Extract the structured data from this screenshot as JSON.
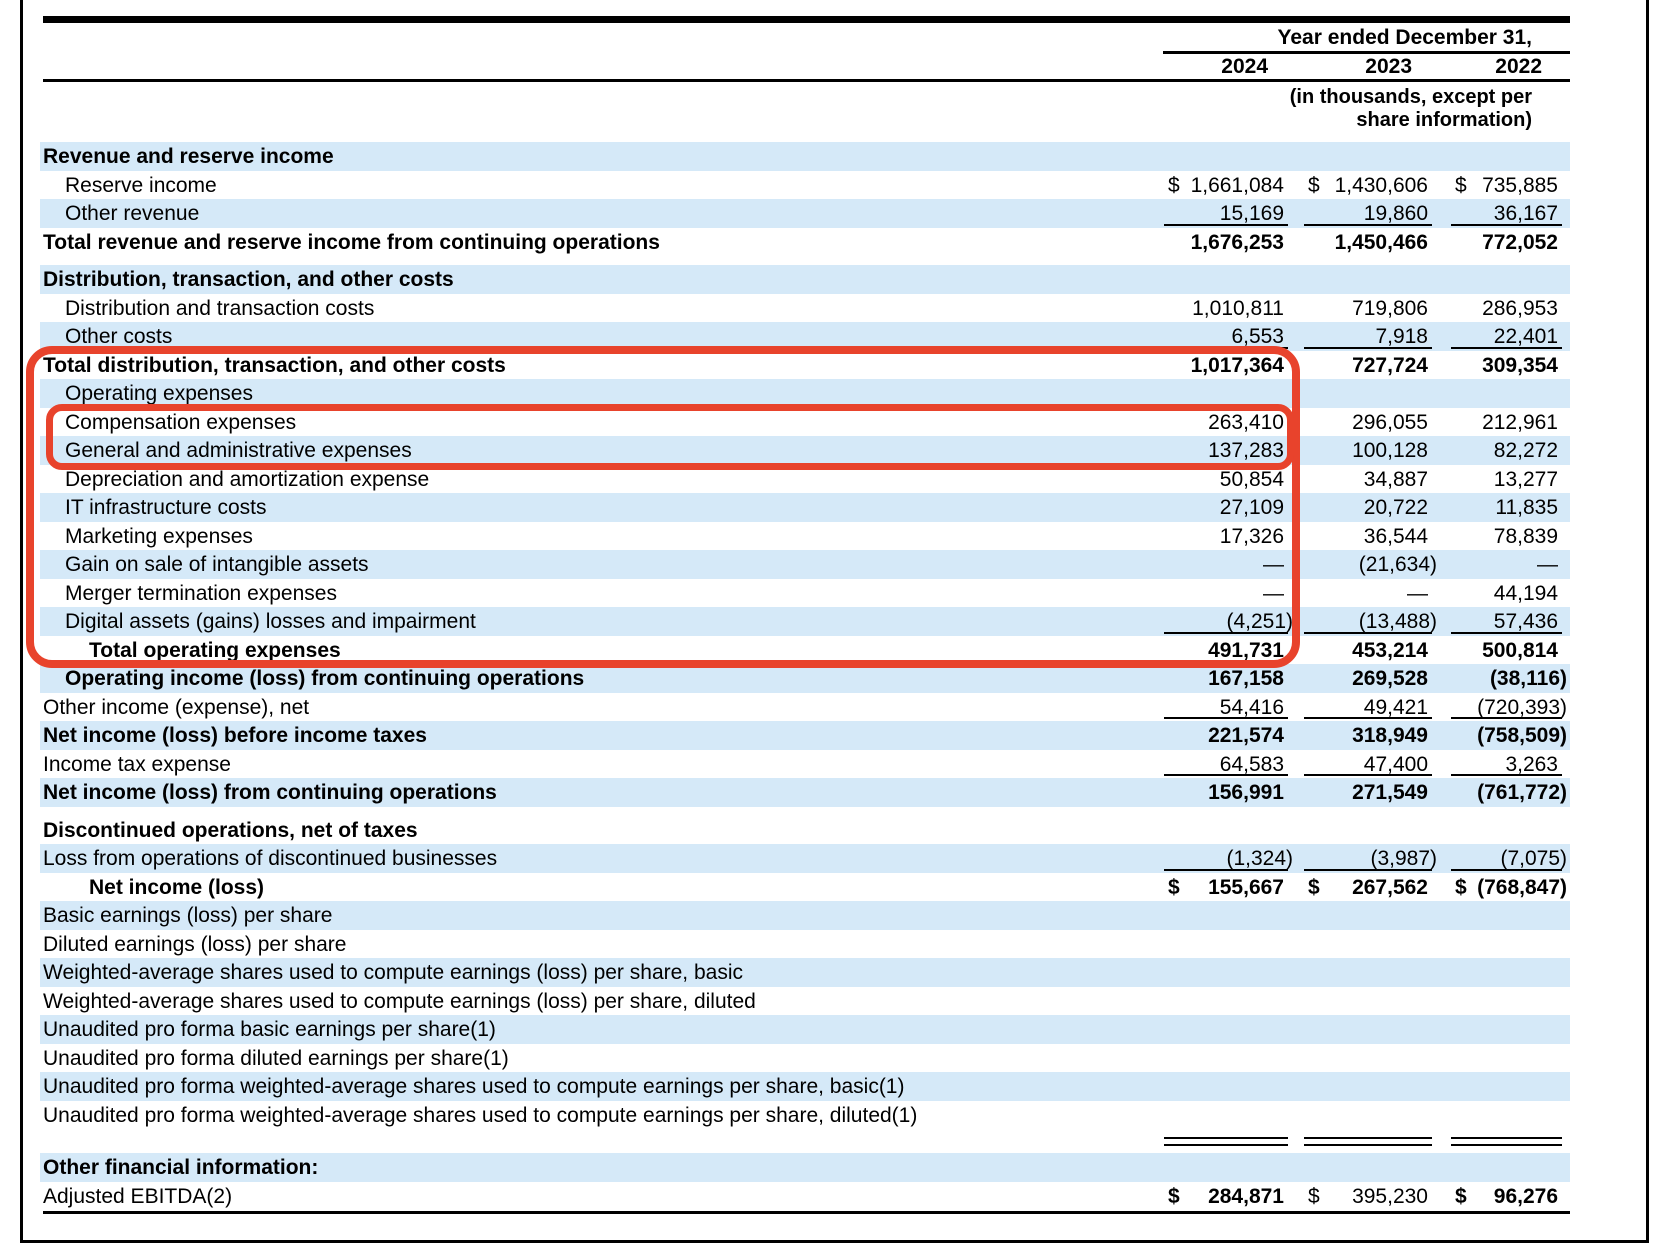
{
  "header": {
    "period_label": "Year ended December 31,",
    "years": [
      "2024",
      "2023",
      "2022"
    ],
    "units_note_line1": "(in thousands, except per",
    "units_note_line2": "share information)"
  },
  "colors": {
    "stripe": "#d5e9f8",
    "annotation_red": "#e8432c",
    "text": "#000000"
  },
  "annotations": {
    "outer_box_note": "red rounded box around rows from Total distribution, transaction, and other costs through Total operating expenses (2024 column)",
    "inner_box_note": "red rounded box around Compensation expenses and General and administrative expenses rows (2024 column)"
  },
  "table": {
    "rows": [
      {
        "label": "Revenue and reserve income",
        "indent": 0,
        "bold": true,
        "shaded": true,
        "values": [
          "",
          "",
          ""
        ]
      },
      {
        "label": "Reserve income",
        "indent": 1,
        "dollar": true,
        "values": [
          "1,661,084",
          "1,430,606",
          "735,885"
        ]
      },
      {
        "label": "Other revenue",
        "indent": 1,
        "shaded": true,
        "rule": true,
        "values": [
          "15,169",
          "19,860",
          "36,167"
        ]
      },
      {
        "label": "Total revenue and reserve income from continuing operations",
        "indent": 0,
        "bold": true,
        "vbold": true,
        "values": [
          "1,676,253",
          "1,450,466",
          "772,052"
        ]
      },
      {
        "type": "spacer",
        "h": 9
      },
      {
        "label": "Distribution, transaction, and other costs",
        "indent": 0,
        "bold": true,
        "shaded": true,
        "values": [
          "",
          "",
          ""
        ]
      },
      {
        "label": "Distribution and transaction costs",
        "indent": 1,
        "values": [
          "1,010,811",
          "719,806",
          "286,953"
        ]
      },
      {
        "label": "Other costs",
        "indent": 1,
        "shaded": true,
        "rule": true,
        "values": [
          "6,553",
          "7,918",
          "22,401"
        ]
      },
      {
        "label": "Total distribution, transaction, and other costs",
        "indent": 0,
        "bold": true,
        "vbold": true,
        "values": [
          "1,017,364",
          "727,724",
          "309,354"
        ]
      },
      {
        "label": "Operating expenses",
        "indent": 1,
        "shaded": true,
        "values": [
          "",
          "",
          ""
        ]
      },
      {
        "label": "Compensation expenses",
        "indent": 1,
        "values": [
          "263,410",
          "296,055",
          "212,961"
        ]
      },
      {
        "label": "General and administrative expenses",
        "indent": 1,
        "shaded": true,
        "values": [
          "137,283",
          "100,128",
          "82,272"
        ]
      },
      {
        "label": "Depreciation and amortization expense",
        "indent": 1,
        "values": [
          "50,854",
          "34,887",
          "13,277"
        ]
      },
      {
        "label": "IT infrastructure costs",
        "indent": 1,
        "shaded": true,
        "values": [
          "27,109",
          "20,722",
          "11,835"
        ]
      },
      {
        "label": "Marketing expenses",
        "indent": 1,
        "values": [
          "17,326",
          "36,544",
          "78,839"
        ]
      },
      {
        "label": "Gain on sale of intangible assets",
        "indent": 1,
        "shaded": true,
        "values": [
          "—",
          "(21,634)",
          "—"
        ]
      },
      {
        "label": "Merger termination expenses",
        "indent": 1,
        "values": [
          "—",
          "—",
          "44,194"
        ]
      },
      {
        "label": "Digital assets (gains) losses and impairment",
        "indent": 1,
        "shaded": true,
        "rule": true,
        "values": [
          "(4,251)",
          "(13,488)",
          "57,436"
        ]
      },
      {
        "label": "Total operating expenses",
        "indent": 2,
        "bold": true,
        "vbold": true,
        "values": [
          "491,731",
          "453,214",
          "500,814"
        ]
      },
      {
        "label": "Operating income (loss) from continuing operations",
        "indent": 1,
        "bold": true,
        "vbold": true,
        "shaded": true,
        "values": [
          "167,158",
          "269,528",
          "(38,116)"
        ]
      },
      {
        "label": "Other income (expense), net",
        "indent": 0,
        "rule": true,
        "values": [
          "54,416",
          "49,421",
          "(720,393)"
        ]
      },
      {
        "label": "Net income (loss) before income taxes",
        "indent": 0,
        "bold": true,
        "vbold": true,
        "shaded": true,
        "values": [
          "221,574",
          "318,949",
          "(758,509)"
        ]
      },
      {
        "label": "Income tax expense",
        "indent": 0,
        "rule": true,
        "values": [
          "64,583",
          "47,400",
          "3,263"
        ]
      },
      {
        "label": "Net income (loss) from continuing operations",
        "indent": 0,
        "bold": true,
        "vbold": true,
        "shaded": true,
        "values": [
          "156,991",
          "271,549",
          "(761,772)"
        ]
      },
      {
        "type": "spacer",
        "h": 9
      },
      {
        "label": "Discontinued operations, net of taxes",
        "indent": 0,
        "bold": true,
        "values": [
          "",
          "",
          ""
        ]
      },
      {
        "label": "Loss from operations of discontinued businesses",
        "indent": 0,
        "shaded": true,
        "rule": true,
        "values": [
          "(1,324)",
          "(3,987)",
          "(7,075)"
        ]
      },
      {
        "label": "Net income (loss)",
        "indent": 2,
        "bold": true,
        "vbold": true,
        "dollar": true,
        "values": [
          "155,667",
          "267,562",
          "(768,847)"
        ]
      },
      {
        "label": "Basic earnings (loss) per share",
        "indent": 0,
        "shaded": true,
        "values": [
          "",
          "",
          ""
        ]
      },
      {
        "label": "Diluted earnings (loss) per share",
        "indent": 0,
        "values": [
          "",
          "",
          ""
        ]
      },
      {
        "label": "Weighted-average shares used to compute earnings (loss) per share, basic",
        "indent": 0,
        "shaded": true,
        "values": [
          "",
          "",
          ""
        ]
      },
      {
        "label": "Weighted-average shares used to compute earnings (loss) per share, diluted",
        "indent": 0,
        "values": [
          "",
          "",
          ""
        ]
      },
      {
        "label": "Unaudited pro forma basic earnings per share(1)",
        "indent": 0,
        "shaded": true,
        "values": [
          "",
          "",
          ""
        ]
      },
      {
        "label": "Unaudited pro forma diluted earnings per share(1)",
        "indent": 0,
        "values": [
          "",
          "",
          ""
        ]
      },
      {
        "label": "Unaudited pro forma weighted-average shares used to compute earnings per share, basic(1)",
        "indent": 0,
        "shaded": true,
        "values": [
          "",
          "",
          ""
        ]
      },
      {
        "label": "Unaudited pro forma weighted-average shares used to compute earnings per share, diluted(1)",
        "indent": 0,
        "values": [
          "",
          "",
          ""
        ]
      },
      {
        "type": "double_rule"
      },
      {
        "label": "Other financial information:",
        "indent": 0,
        "bold": true,
        "shaded": true,
        "values": [
          "",
          "",
          ""
        ]
      },
      {
        "label": "Adjusted EBITDA(2)",
        "indent": 0,
        "dollar": true,
        "vbold": [
          true,
          false,
          true
        ],
        "values": [
          "284,871",
          "395,230",
          "96,276"
        ]
      }
    ]
  }
}
